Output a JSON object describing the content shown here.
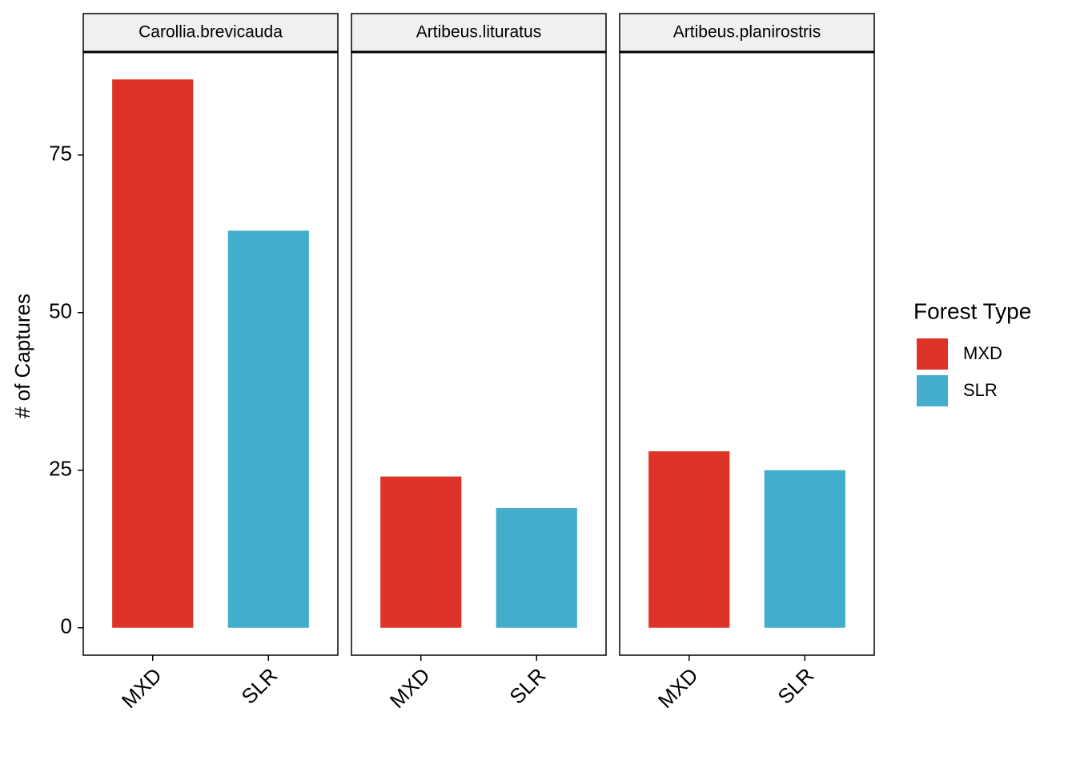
{
  "chart_data": {
    "type": "bar",
    "y_label": "# of Captures",
    "legend_title": "Forest Type",
    "legend_position": "right",
    "categories": [
      "MXD",
      "SLR"
    ],
    "colors": [
      "#dd3329",
      "#42aecb"
    ],
    "ylim": [
      -4.35,
      91.35
    ],
    "yticks": [
      0,
      25,
      50,
      75
    ],
    "panels": [
      {
        "title": "Carollia.brevicauda",
        "values": [
          87,
          63
        ]
      },
      {
        "title": "Artibeus.lituratus",
        "values": [
          24,
          19
        ]
      },
      {
        "title": "Artibeus.planirostris",
        "values": [
          28,
          25
        ]
      }
    ]
  }
}
